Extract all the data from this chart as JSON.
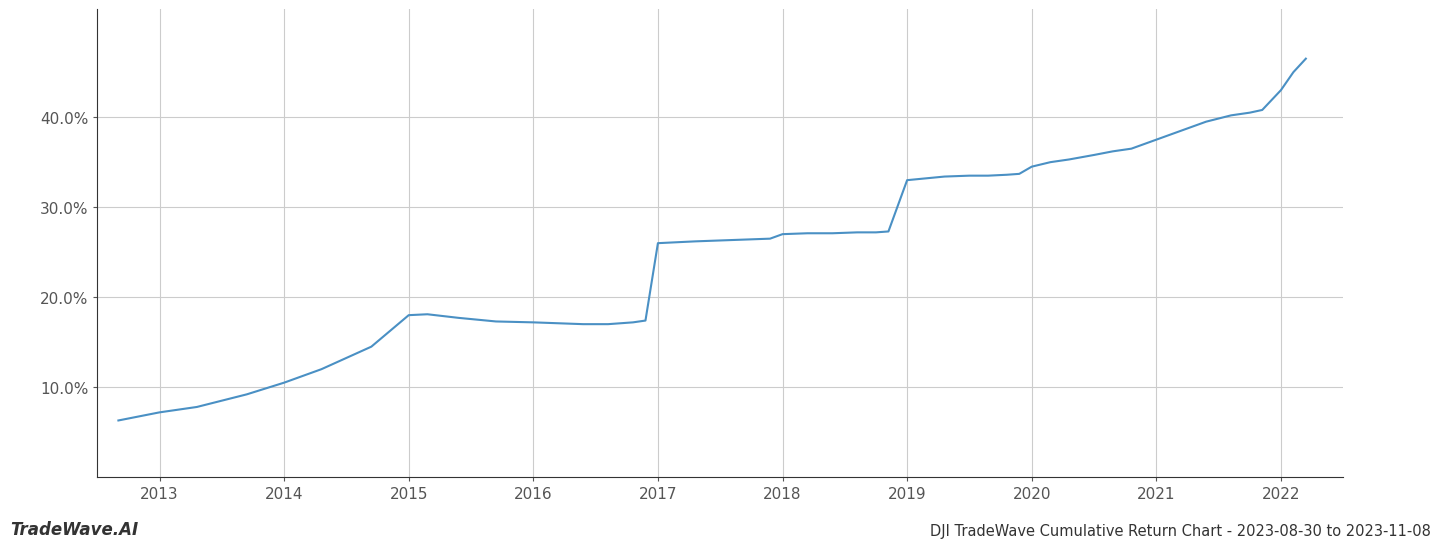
{
  "x": [
    2012.67,
    2013.0,
    2013.3,
    2013.7,
    2014.0,
    2014.3,
    2014.7,
    2015.0,
    2015.15,
    2015.4,
    2015.7,
    2016.0,
    2016.2,
    2016.4,
    2016.6,
    2016.8,
    2016.9,
    2017.0,
    2017.15,
    2017.3,
    2017.5,
    2017.7,
    2017.9,
    2018.0,
    2018.2,
    2018.4,
    2018.6,
    2018.75,
    2018.85,
    2019.0,
    2019.15,
    2019.3,
    2019.5,
    2019.65,
    2019.8,
    2019.9,
    2020.0,
    2020.15,
    2020.3,
    2020.5,
    2020.65,
    2020.8,
    2021.0,
    2021.2,
    2021.4,
    2021.6,
    2021.75,
    2021.85,
    2022.0,
    2022.1,
    2022.2
  ],
  "y": [
    6.3,
    7.2,
    7.8,
    9.2,
    10.5,
    12.0,
    14.5,
    18.0,
    18.1,
    17.7,
    17.3,
    17.2,
    17.1,
    17.0,
    17.0,
    17.2,
    17.4,
    26.0,
    26.1,
    26.2,
    26.3,
    26.4,
    26.5,
    27.0,
    27.1,
    27.1,
    27.2,
    27.2,
    27.3,
    33.0,
    33.2,
    33.4,
    33.5,
    33.5,
    33.6,
    33.7,
    34.5,
    35.0,
    35.3,
    35.8,
    36.2,
    36.5,
    37.5,
    38.5,
    39.5,
    40.2,
    40.5,
    40.8,
    43.0,
    45.0,
    46.5
  ],
  "line_color": "#4a90c4",
  "line_width": 1.5,
  "bg_color": "#ffffff",
  "grid_color": "#cccccc",
  "title": "DJI TradeWave Cumulative Return Chart - 2023-08-30 to 2023-11-08",
  "watermark": "TradeWave.AI",
  "xlim": [
    2012.5,
    2022.5
  ],
  "ylim": [
    0,
    52
  ],
  "xticks": [
    2013,
    2014,
    2015,
    2016,
    2017,
    2018,
    2019,
    2020,
    2021,
    2022
  ],
  "yticks": [
    10.0,
    20.0,
    30.0,
    40.0
  ],
  "ytick_labels": [
    "10.0%",
    "20.0%",
    "30.0%",
    "40.0%"
  ],
  "title_fontsize": 10.5,
  "tick_fontsize": 11,
  "watermark_fontsize": 12
}
